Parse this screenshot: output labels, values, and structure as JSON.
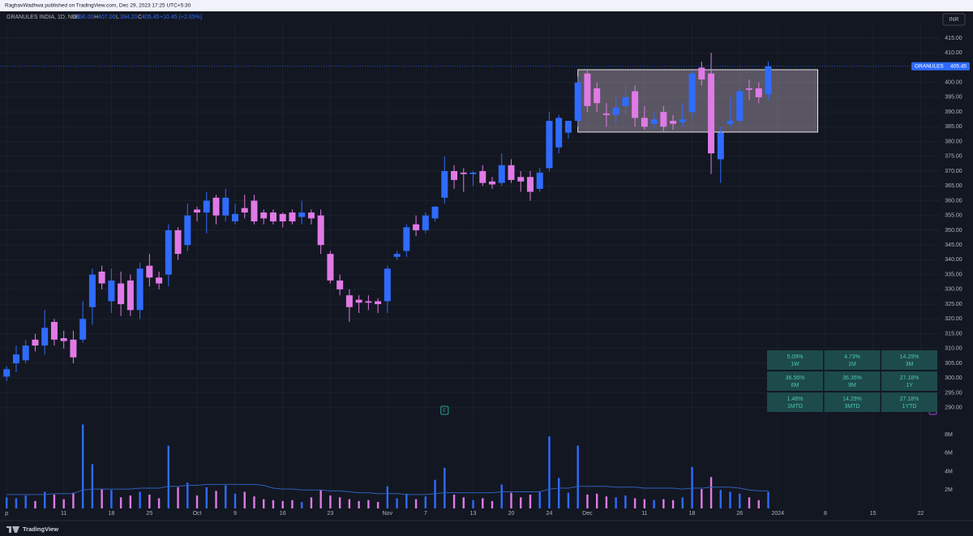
{
  "header": {
    "byline": "RaghavWadhwa published on TradingView.com, Dec 29, 2023 17:25 UTC+5:30",
    "symbol": "GRANULES INDIA, 1D, NSE",
    "ohlc": [
      {
        "key": "O",
        "value": "396.00"
      },
      {
        "key": "H",
        "value": "407.00"
      },
      {
        "key": "L",
        "value": "394.20"
      },
      {
        "key": "C",
        "value": "405.45"
      }
    ],
    "change": "+10.45 (+2.65%)"
  },
  "chart_data": {
    "type": "candlestick",
    "currency": "INR",
    "last_price_name": "GRANULES",
    "up_color": "#2f6bff",
    "down_color": "#e07ae6",
    "grid": true,
    "open": [
      300.5,
      305,
      306,
      313,
      311,
      319,
      313.5,
      313,
      313,
      324,
      336,
      326,
      332,
      333,
      323,
      338,
      334,
      335,
      350,
      345,
      357,
      356,
      361,
      355,
      353,
      357.5,
      360,
      356,
      356,
      355.5,
      356,
      354.5,
      356,
      355,
      342,
      333,
      328,
      326.5,
      326,
      326,
      326,
      341,
      343,
      352,
      350,
      354,
      361,
      370,
      369.5,
      369,
      370,
      366.5,
      366,
      372,
      368,
      368,
      364,
      371,
      378,
      383,
      387,
      403,
      398,
      389.5,
      389,
      392,
      397,
      388,
      386,
      390,
      387,
      386.5,
      390,
      405,
      403,
      374,
      386,
      387,
      398,
      398,
      396
    ],
    "high": [
      304,
      311,
      313,
      315,
      323,
      320,
      316,
      316,
      326,
      337,
      338,
      337,
      336,
      335,
      339,
      342,
      336,
      352,
      351,
      359,
      358,
      363,
      362,
      364,
      359,
      362,
      362,
      357,
      357,
      356,
      357,
      360,
      357,
      357,
      343,
      335,
      330,
      328,
      328,
      327,
      338,
      343,
      352,
      355,
      356,
      358,
      375,
      372,
      371,
      370,
      372,
      368,
      376,
      374,
      370,
      370,
      371,
      390,
      389,
      387,
      402,
      404,
      400,
      393,
      395,
      399,
      399,
      392,
      390,
      392,
      389,
      393,
      404,
      407,
      410,
      385,
      395,
      398,
      401,
      400,
      407
    ],
    "low": [
      299,
      302,
      305,
      309,
      308,
      311,
      310,
      305,
      312,
      318,
      330,
      322,
      321,
      321,
      320,
      331,
      330,
      331,
      340,
      343,
      353,
      349,
      352,
      353,
      352,
      354,
      352,
      352,
      352,
      351,
      352,
      352,
      352,
      342,
      332,
      328,
      319,
      322,
      323,
      322,
      322,
      340,
      341,
      348,
      349,
      353,
      359,
      364,
      363,
      365,
      365,
      364,
      365,
      366,
      363,
      360,
      363,
      370,
      376,
      381,
      385,
      390,
      390,
      385,
      386,
      389,
      385,
      384,
      384,
      383,
      384,
      385,
      388,
      399,
      369,
      366,
      385,
      386,
      394,
      393,
      394.2
    ],
    "close": [
      303,
      308,
      311,
      311,
      317,
      313,
      312.5,
      307,
      320,
      335,
      332,
      333,
      325,
      323,
      337,
      334,
      332,
      350,
      342,
      355,
      356,
      360,
      355,
      361,
      355.5,
      356,
      353,
      354,
      353,
      353,
      353,
      356,
      354,
      345,
      333,
      330,
      324,
      325.5,
      325.5,
      325,
      337,
      342,
      351,
      350,
      355,
      358,
      370,
      367,
      369,
      369.5,
      366,
      365.5,
      372,
      367,
      366.5,
      363,
      369.5,
      387,
      388,
      387,
      400,
      392,
      393,
      389,
      391.5,
      395,
      388,
      385,
      387.5,
      385,
      386,
      387.5,
      403,
      401,
      376,
      383,
      387,
      397,
      397.5,
      395,
      405.45
    ],
    "ylim": [
      288,
      418
    ],
    "yticks": [
      {
        "value": 290,
        "label": "290.00"
      },
      {
        "value": 295,
        "label": "295.00"
      },
      {
        "value": 300,
        "label": "300.00"
      },
      {
        "value": 305,
        "label": "305.00"
      },
      {
        "value": 310,
        "label": "310.00"
      },
      {
        "value": 315,
        "label": "315.00"
      },
      {
        "value": 320,
        "label": "320.00"
      },
      {
        "value": 325,
        "label": "325.00"
      },
      {
        "value": 330,
        "label": "330.00"
      },
      {
        "value": 335,
        "label": "335.00"
      },
      {
        "value": 340,
        "label": "340.00"
      },
      {
        "value": 345,
        "label": "345.00"
      },
      {
        "value": 350,
        "label": "350.00"
      },
      {
        "value": 355,
        "label": "355.00"
      },
      {
        "value": 360,
        "label": "360.00"
      },
      {
        "value": 365,
        "label": "365.00"
      },
      {
        "value": 370,
        "label": "370.00"
      },
      {
        "value": 375,
        "label": "375.00"
      },
      {
        "value": 380,
        "label": "380.00"
      },
      {
        "value": 385,
        "label": "385.00"
      },
      {
        "value": 390,
        "label": "390.00"
      },
      {
        "value": 395,
        "label": "395.00"
      },
      {
        "value": 400,
        "label": "400.00"
      },
      {
        "value": 410,
        "label": "410.00"
      },
      {
        "value": 415,
        "label": "415.00"
      }
    ],
    "xlim": [
      -0.7,
      98.1
    ],
    "xticks": [
      {
        "value": 0,
        "label": "p"
      },
      {
        "value": 6,
        "label": "11"
      },
      {
        "value": 11,
        "label": "18"
      },
      {
        "value": 15,
        "label": "25"
      },
      {
        "value": 20,
        "label": "Oct"
      },
      {
        "value": 24,
        "label": "9"
      },
      {
        "value": 29,
        "label": "16"
      },
      {
        "value": 34,
        "label": "23"
      },
      {
        "value": 40,
        "label": "Nov"
      },
      {
        "value": 44,
        "label": "7"
      },
      {
        "value": 49,
        "label": "13"
      },
      {
        "value": 53,
        "label": "20"
      },
      {
        "value": 57,
        "label": "24"
      },
      {
        "value": 61,
        "label": "Dec"
      },
      {
        "value": 67,
        "label": "11"
      },
      {
        "value": 72,
        "label": "18"
      },
      {
        "value": 77,
        "label": "26"
      },
      {
        "value": 81,
        "label": "2024"
      },
      {
        "value": 86,
        "label": "8"
      },
      {
        "value": 91,
        "label": "15"
      },
      {
        "value": 96,
        "label": "22"
      }
    ],
    "box": {
      "start": 60,
      "end": 85.2,
      "low": 383.2,
      "high": 404.3
    },
    "events": [
      {
        "label": "E",
        "at": 46,
        "color": "#26a69a"
      },
      {
        "label": "E",
        "at": 97.3,
        "color": "#b03fd0"
      }
    ],
    "volume": {
      "values": [
        1200000,
        1100000,
        1400000,
        800000,
        1800000,
        1500000,
        1000000,
        1700000,
        9100000,
        4800000,
        2100000,
        2000000,
        1200000,
        1400000,
        1800000,
        1500000,
        1100000,
        6800000,
        2300000,
        2800000,
        1400000,
        2300000,
        1900000,
        2500000,
        1600000,
        1800000,
        1300000,
        1000000,
        900000,
        800000,
        900000,
        700000,
        1200000,
        2000000,
        1400000,
        1200000,
        1000000,
        800000,
        900000,
        700000,
        2400000,
        1100000,
        1600000,
        1000000,
        1300000,
        3100000,
        4400000,
        1500000,
        1200000,
        900000,
        1100000,
        800000,
        2600000,
        1700000,
        1200000,
        1500000,
        1800000,
        7800000,
        3300000,
        1700000,
        6800000,
        1500000,
        1600000,
        1300000,
        1200000,
        1400000,
        1100000,
        1000000,
        900000,
        1000000,
        900000,
        1200000,
        4500000,
        2100000,
        3400000,
        2000000,
        1800000,
        1600000,
        1200000,
        900000,
        1800000
      ],
      "ma": [
        1500000,
        1500000,
        1500000,
        1500000,
        1500000,
        1600000,
        1600000,
        1600000,
        2000000,
        2100000,
        2100000,
        2100000,
        2100000,
        2100000,
        2200000,
        2200000,
        2200000,
        2400000,
        2400000,
        2500000,
        2500000,
        2600000,
        2600000,
        2600000,
        2600000,
        2600000,
        2600000,
        2500000,
        2200000,
        2100000,
        2100000,
        2000000,
        2000000,
        2000000,
        1900000,
        1900000,
        1800000,
        1700000,
        1700000,
        1600000,
        1600000,
        1600000,
        1500000,
        1500000,
        1500000,
        1600000,
        1700000,
        1700000,
        1700000,
        1700000,
        1700000,
        1700000,
        1800000,
        1800000,
        1800000,
        1800000,
        1800000,
        2100000,
        2200000,
        2200000,
        2400000,
        2400000,
        2400000,
        2400000,
        2300000,
        2300000,
        2300000,
        2200000,
        2200000,
        2200000,
        2200000,
        2100000,
        2200000,
        2200000,
        2300000,
        2300000,
        2300000,
        2200000,
        2000000,
        1900000,
        1900000
      ],
      "ma_color": "#2e5fb8",
      "ylim": [
        0,
        9400000
      ],
      "yticks": [
        {
          "value": 2000000,
          "label": "2M"
        },
        {
          "value": 4000000,
          "label": "4M"
        },
        {
          "value": 6000000,
          "label": "6M"
        },
        {
          "value": 8000000,
          "label": "8M"
        }
      ]
    }
  },
  "performance": [
    [
      {
        "value": "5.09%",
        "period": "1W"
      },
      {
        "value": "4.73%",
        "period": "1M"
      },
      {
        "value": "14.29%",
        "period": "3M"
      }
    ],
    [
      {
        "value": "36.56%",
        "period": "6M"
      },
      {
        "value": "36.35%",
        "period": "9M"
      },
      {
        "value": "27.18%",
        "period": "1Y"
      }
    ],
    [
      {
        "value": "1.48%",
        "period": "1MTD"
      },
      {
        "value": "14.29%",
        "period": "3MTD"
      },
      {
        "value": "27.18%",
        "period": "1YTD"
      }
    ]
  ],
  "footer": {
    "brand": "TradingView"
  }
}
